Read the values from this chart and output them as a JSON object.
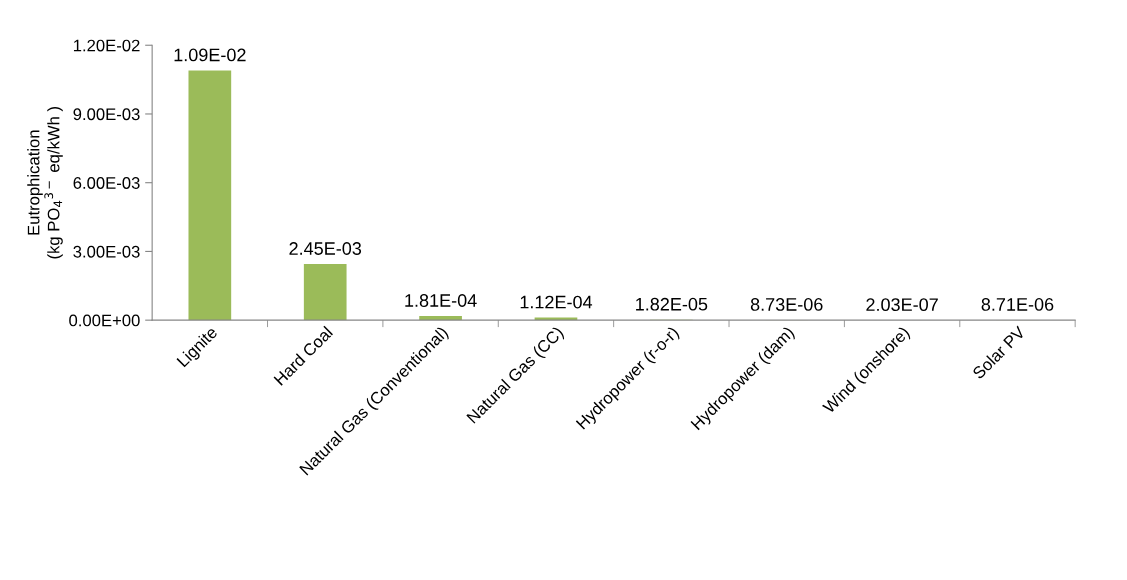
{
  "chart_data": {
    "type": "bar",
    "ylabel": "Eutrophication\n(kg PO$_{4}$$^{3−}$ eq/kWh )",
    "categories": [
      "Lignite",
      "Hard Coal",
      "Natural Gas (Conventional)",
      "Natural Gas (CC)",
      "Hydropower (r-o-r)",
      "Hydropower (dam)",
      "Wind (onshore)",
      "Solar PV"
    ],
    "values": [
      0.0109,
      0.00245,
      0.000181,
      0.000112,
      1.82e-05,
      8.73e-06,
      2.03e-07,
      8.71e-06
    ],
    "value_labels": [
      "1.09E-02",
      "2.45E-03",
      "1.81E-04",
      "1.12E-04",
      "1.82E-05",
      "8.73E-06",
      "2.03E-07",
      "8.71E-06"
    ],
    "color": "#9bbb59",
    "ylim": [
      0,
      0.012
    ],
    "yticks": [
      {
        "value": 0,
        "label": "0.00E+00"
      },
      {
        "value": 0.003,
        "label": "3.00E-03"
      },
      {
        "value": 0.006,
        "label": "6.00E-03"
      },
      {
        "value": 0.009,
        "label": "9.00E-03"
      },
      {
        "value": 0.012,
        "label": "1.20E-02"
      }
    ],
    "grid": false,
    "legend": false
  }
}
